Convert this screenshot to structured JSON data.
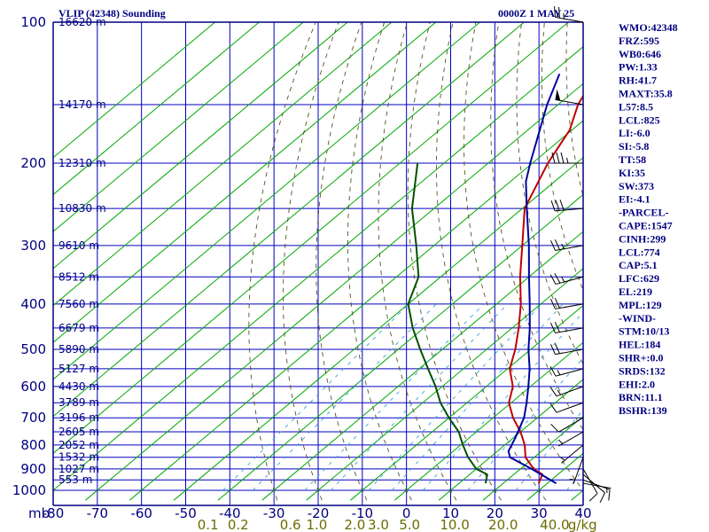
{
  "header": {
    "title": "VLIP (42348) Sounding",
    "time": "0000Z  1 MAY 25"
  },
  "indices": [
    "WMO:42348",
    "FRZ:595",
    "WB0:646",
    "PW:1.33",
    "RH:41.7",
    "MAXT:35.8",
    "L57:8.5",
    "LCL:825",
    "LI:-6.0",
    "SI:-5.8",
    "TT:58",
    "KI:35",
    "SW:373",
    "EI:-4.1",
    "-PARCEL-",
    "CAPE:1547",
    "CINH:299",
    "LCL:774",
    "CAP:5.1",
    "LFC:629",
    "EL:219",
    "MPL:129",
    "-WIND-",
    "STM:10/13",
    "HEL:184",
    "SHR+:0.0",
    "SRDS:132",
    "EHI:2.0",
    "BRN:11.1",
    "BSHR:139"
  ],
  "colors": {
    "frame": "#000080",
    "grid": "#0000c0",
    "isotherm": "#00a800",
    "dry_adiabat": "#555522",
    "mixing_ratio": "#3c9cd8",
    "temperature": "#c00000",
    "dewpoint": "#005000",
    "parcel": "#0000a0",
    "wind": "#000000"
  },
  "chart_data": {
    "type": "line",
    "title": "VLIP (42348) Sounding",
    "subtitle": "0000Z  1 MAY 25",
    "skew_t": true,
    "x_axis": {
      "unit": "°C",
      "range": [
        -80,
        40
      ],
      "tick_labels": [
        "-80",
        "-70",
        "-60",
        "-50",
        "-40",
        "-30",
        "-20",
        "-10",
        "0",
        "10",
        "20",
        "30",
        "40"
      ],
      "corner_label": "mb"
    },
    "y_axis": {
      "unit": "mb",
      "log_scale": true,
      "range": [
        1000,
        100
      ],
      "tick_labels": [
        "100",
        "200",
        "300",
        "400",
        "500",
        "600",
        "700",
        "800",
        "900",
        "1000"
      ]
    },
    "height_labels": [
      {
        "p": 100,
        "label": "16620 m"
      },
      {
        "p": 150,
        "label": "14170 m"
      },
      {
        "p": 200,
        "label": "12310 m"
      },
      {
        "p": 250,
        "label": "10830 m"
      },
      {
        "p": 300,
        "label": "9610 m"
      },
      {
        "p": 350,
        "label": "8512 m"
      },
      {
        "p": 400,
        "label": "7560 m"
      },
      {
        "p": 450,
        "label": "6679 m"
      },
      {
        "p": 500,
        "label": "5890 m"
      },
      {
        "p": 550,
        "label": "5127 m"
      },
      {
        "p": 600,
        "label": "4430 m"
      },
      {
        "p": 650,
        "label": "3789 m"
      },
      {
        "p": 700,
        "label": "3196 m"
      },
      {
        "p": 750,
        "label": "2605 m"
      },
      {
        "p": 800,
        "label": "2052 m"
      },
      {
        "p": 850,
        "label": "1532 m"
      },
      {
        "p": 900,
        "label": "1027 m"
      },
      {
        "p": 950,
        "label": "553 m"
      }
    ],
    "mixing_ratio_labels": [
      {
        "w": 0.1,
        "label": "0.1"
      },
      {
        "w": 0.2,
        "label": "0.2"
      },
      {
        "w": 0.6,
        "label": "0.6"
      },
      {
        "w": 1.0,
        "label": "1.0"
      },
      {
        "w": 2.0,
        "label": "2.0"
      },
      {
        "w": 3.0,
        "label": "3.0"
      },
      {
        "w": 5.0,
        "label": "5.0"
      },
      {
        "w": 10.0,
        "label": "10.0"
      },
      {
        "w": 20.0,
        "label": "20.0"
      },
      {
        "w": 40.0,
        "label": "40.0"
      }
    ],
    "mixing_ratio_unit": "g/kg",
    "series": [
      {
        "key": "temperature",
        "points": [
          [
            966,
            28.0
          ],
          [
            925,
            26.5
          ],
          [
            900,
            23.0
          ],
          [
            850,
            18.0
          ],
          [
            800,
            14.5
          ],
          [
            750,
            10.0
          ],
          [
            700,
            4.5
          ],
          [
            650,
            -0.5
          ],
          [
            600,
            -4.0
          ],
          [
            550,
            -9.5
          ],
          [
            500,
            -13.5
          ],
          [
            450,
            -18.5
          ],
          [
            400,
            -24.5
          ],
          [
            350,
            -32.0
          ],
          [
            300,
            -40.0
          ],
          [
            250,
            -49.5
          ],
          [
            200,
            -56.5
          ],
          [
            170,
            -60.5
          ],
          [
            150,
            -65.5
          ],
          [
            100,
            -76.5
          ]
        ]
      },
      {
        "key": "dewpoint",
        "points": [
          [
            966,
            16.0
          ],
          [
            925,
            14.0
          ],
          [
            900,
            10.0
          ],
          [
            850,
            5.0
          ],
          [
            800,
            0.5
          ],
          [
            750,
            -4.0
          ],
          [
            700,
            -10.0
          ],
          [
            650,
            -16.0
          ],
          [
            600,
            -21.5
          ],
          [
            550,
            -28.0
          ],
          [
            500,
            -35.0
          ],
          [
            450,
            -42.5
          ],
          [
            400,
            -50.0
          ],
          [
            350,
            -55.0
          ],
          [
            300,
            -64.0
          ],
          [
            250,
            -75.0
          ],
          [
            200,
            -86.0
          ]
        ]
      },
      {
        "key": "parcel",
        "points": [
          [
            966,
            32.0
          ],
          [
            900,
            22.5
          ],
          [
            850,
            14.5
          ],
          [
            825,
            12.5
          ],
          [
            774,
            10.5
          ],
          [
            700,
            7.0
          ],
          [
            650,
            3.5
          ],
          [
            600,
            -0.5
          ],
          [
            550,
            -5.0
          ],
          [
            500,
            -10.5
          ],
          [
            450,
            -16.0
          ],
          [
            400,
            -22.5
          ],
          [
            350,
            -30.0
          ],
          [
            300,
            -38.5
          ],
          [
            250,
            -49.0
          ],
          [
            219,
            -56.5
          ],
          [
            200,
            -60.5
          ],
          [
            150,
            -72.5
          ],
          [
            129,
            -78.0
          ]
        ]
      }
    ],
    "wind_barbs": [
      {
        "p": 966,
        "dir": 100,
        "spd": 5
      },
      {
        "p": 950,
        "dir": 110,
        "spd": 10
      },
      {
        "p": 925,
        "dir": 130,
        "spd": 10
      },
      {
        "p": 900,
        "dir": 150,
        "spd": 10
      },
      {
        "p": 850,
        "dir": 200,
        "spd": 5
      },
      {
        "p": 800,
        "dir": 230,
        "spd": 5
      },
      {
        "p": 750,
        "dir": 240,
        "spd": 5
      },
      {
        "p": 700,
        "dir": 240,
        "spd": 10
      },
      {
        "p": 650,
        "dir": 250,
        "spd": 10
      },
      {
        "p": 600,
        "dir": 250,
        "spd": 15
      },
      {
        "p": 550,
        "dir": 255,
        "spd": 15
      },
      {
        "p": 500,
        "dir": 260,
        "spd": 20
      },
      {
        "p": 450,
        "dir": 260,
        "spd": 20
      },
      {
        "p": 400,
        "dir": 260,
        "spd": 20
      },
      {
        "p": 350,
        "dir": 255,
        "spd": 25
      },
      {
        "p": 300,
        "dir": 260,
        "spd": 25
      },
      {
        "p": 250,
        "dir": 265,
        "spd": 30
      },
      {
        "p": 200,
        "dir": 270,
        "spd": 35
      },
      {
        "p": 150,
        "dir": 280,
        "spd": 50
      },
      {
        "p": 100,
        "dir": 280,
        "spd": 25
      }
    ]
  }
}
